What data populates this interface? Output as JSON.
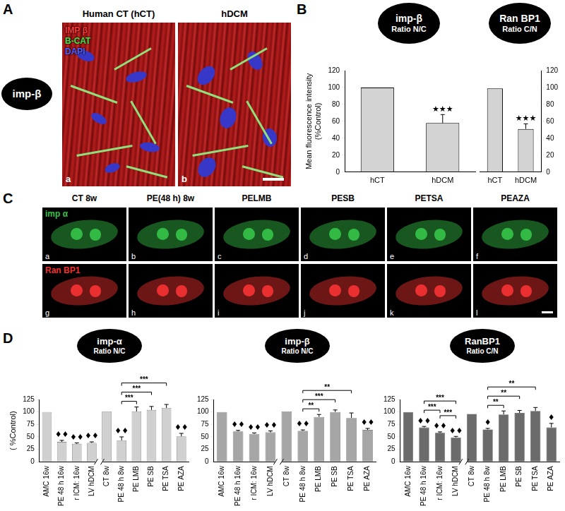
{
  "panel_A": {
    "label": "A",
    "title": "imp-β",
    "images": [
      {
        "title": "Human CT (hCT)",
        "letter": "a"
      },
      {
        "title": "hDCM",
        "letter": "b"
      }
    ],
    "stain_labels": [
      {
        "text": "IMP β",
        "color": "#ff3a3a"
      },
      {
        "text": "B-CAT",
        "color": "#4ce04c"
      },
      {
        "text": "DAPI",
        "color": "#5060ff"
      }
    ]
  },
  "panel_B": {
    "label": "B"
  },
  "panel_C": {
    "label": "C",
    "columns": [
      "CT 8w",
      "PE(48 h) 8w",
      "PELMB",
      "PESB",
      "PETSA",
      "PEAZA"
    ],
    "rows": [
      {
        "label": "imp α",
        "color": "#35c048",
        "letters": [
          "a",
          "b",
          "c",
          "d",
          "e",
          "f"
        ]
      },
      {
        "label": "Ran BP1",
        "color": "#f03030",
        "letters": [
          "g",
          "h",
          "i",
          "j",
          "k",
          "l"
        ]
      }
    ]
  },
  "panel_D": {
    "label": "D"
  },
  "chart_data": [
    {
      "type": "bar",
      "title": [
        "imp-β",
        "Ratio N/C"
      ],
      "y_label": [
        "Mean fluorescence intensity",
        "(%Control)"
      ],
      "categories": [
        "hCT",
        "hDCM"
      ],
      "values": [
        100,
        58
      ],
      "errors": [
        null,
        10
      ],
      "marks": [
        null,
        "★★★"
      ],
      "color": "#d3d3d3",
      "ylim": [
        0,
        120
      ],
      "yticks": [
        0,
        20,
        40,
        60,
        80,
        100,
        120
      ],
      "grid": false
    },
    {
      "type": "bar",
      "title": [
        "Ran BP1",
        "Ratio C/N"
      ],
      "categories": [
        "hCT",
        "hDCM"
      ],
      "values": [
        99,
        51
      ],
      "errors": [
        null,
        6
      ],
      "marks": [
        null,
        "★★★"
      ],
      "color": "#d3d3d3",
      "ylim": [
        0,
        120
      ],
      "yticks": [
        0,
        20,
        40,
        60,
        80,
        100,
        120
      ],
      "grid": false
    },
    {
      "type": "bar",
      "title": [
        "imp-α",
        "Ratio N/C"
      ],
      "y_label": "( %Control)",
      "categories": [
        "AMC 16w",
        "PE 48 h 16w",
        "r ICM: 16w",
        "LV hDCM",
        "CT 8w",
        "PE 48 h 8w",
        "PE LMB",
        "PE SB",
        "PE TSA",
        "PE AZA"
      ],
      "values": [
        100,
        40,
        36,
        38,
        101,
        43,
        101,
        104,
        108,
        51
      ],
      "errors": [
        null,
        3,
        2,
        2,
        null,
        7,
        9,
        7,
        7,
        6
      ],
      "marks": [
        null,
        "♦♦",
        "♦♦",
        "♦♦",
        null,
        "♦♦",
        null,
        null,
        null,
        "♦♦"
      ],
      "brackets": [
        {
          "from": "PE 48 h 8w",
          "to": "PE LMB",
          "text": "***"
        },
        {
          "from": "PE 48 h 8w",
          "to": "PE SB",
          "text": "***"
        },
        {
          "from": "PE 48 h 8w",
          "to": "PE TSA",
          "text": "***"
        }
      ],
      "color": "#d0d0d0",
      "ylim": [
        0,
        125
      ],
      "yticks": [
        0,
        25,
        50,
        75,
        100,
        125
      ],
      "grid": false
    },
    {
      "type": "bar",
      "title": [
        "imp-β",
        "Ratio N/C"
      ],
      "categories": [
        "AMC 16w",
        "PE 48 h 16w",
        "r ICM: 16w",
        "LV hDCM",
        "CT 8w",
        "PE 48 h 8w",
        "PE LMB",
        "PE SB",
        "PE TSA",
        "PE AZA"
      ],
      "values": [
        100,
        61,
        56,
        59,
        101,
        62,
        90,
        100,
        88,
        64
      ],
      "errors": [
        null,
        2,
        2,
        3,
        null,
        2,
        5,
        4,
        10,
        3
      ],
      "marks": [
        null,
        "♦♦",
        "♦♦",
        "♦♦",
        null,
        "♦♦",
        null,
        null,
        null,
        "♦♦"
      ],
      "brackets": [
        {
          "from": "PE 48 h 8w",
          "to": "PE LMB",
          "text": "**"
        },
        {
          "from": "PE 48 h 8w",
          "to": "PE SB",
          "text": "***"
        },
        {
          "from": "PE 48 h 8w",
          "to": "PE TSA",
          "text": "**"
        }
      ],
      "color": "#a6a6a6",
      "ylim": [
        0,
        125
      ],
      "yticks": [
        0,
        25,
        50,
        75,
        100,
        125
      ],
      "grid": false
    },
    {
      "type": "bar",
      "title": [
        "RanBP1",
        "Ratio C/N"
      ],
      "categories": [
        "AMC 16w",
        "PE 48 h 16w",
        "r ICM: 16w",
        "LV hDCM",
        "CT 8w",
        "PE 48 h 8w",
        "PE LMB",
        "PE SB",
        "PE TSA",
        "PE AZA"
      ],
      "values": [
        100,
        69,
        58,
        49,
        96,
        65,
        95,
        98,
        102,
        69
      ],
      "errors": [
        null,
        2,
        2,
        2,
        null,
        2,
        7,
        5,
        7,
        8
      ],
      "marks": [
        null,
        "♦♦",
        "♦♦",
        "♦♦",
        null,
        "♦",
        null,
        null,
        null,
        "♦"
      ],
      "brackets": [
        {
          "from": "PE 48 h 16w",
          "to": "r ICM: 16w",
          "text": "***"
        },
        {
          "from": "r ICM: 16w",
          "to": "LV hDCM",
          "text": "***"
        },
        {
          "from": "PE 48 h 16w",
          "to": "LV hDCM",
          "text": "***"
        },
        {
          "from": "PE 48 h 8w",
          "to": "PE LMB",
          "text": "**"
        },
        {
          "from": "PE 48 h 8w",
          "to": "PE SB",
          "text": "**"
        },
        {
          "from": "PE 48 h 8w",
          "to": "PE TSA",
          "text": "**"
        }
      ],
      "color": "#6b6b6b",
      "ylim": [
        0,
        125
      ],
      "yticks": [
        0,
        25,
        50,
        75,
        100,
        125
      ],
      "grid": false
    }
  ]
}
